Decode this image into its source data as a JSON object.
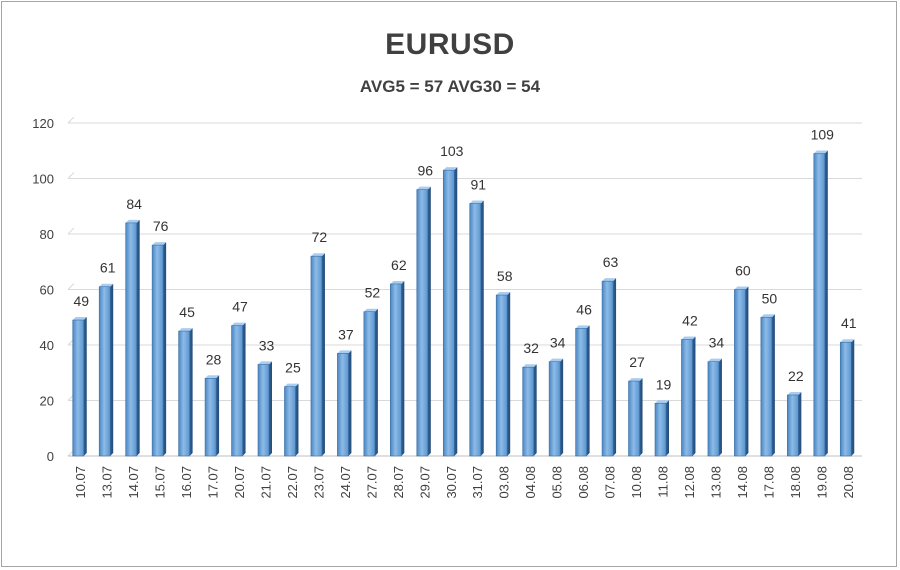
{
  "chart_data": {
    "type": "bar",
    "title": "EURUSD",
    "subtitle": "AVG5 = 57 AVG30 = 54",
    "categories": [
      "10.07",
      "13.07",
      "14.07",
      "15.07",
      "16.07",
      "17.07",
      "20.07",
      "21.07",
      "22.07",
      "23.07",
      "24.07",
      "27.07",
      "28.07",
      "29.07",
      "30.07",
      "31.07",
      "03.08",
      "04.08",
      "05.08",
      "06.08",
      "07.08",
      "10.08",
      "11.08",
      "12.08",
      "13.08",
      "14.08",
      "17.08",
      "18.08",
      "19.08",
      "20.08"
    ],
    "values": [
      49,
      61,
      84,
      76,
      45,
      28,
      47,
      33,
      25,
      72,
      37,
      52,
      62,
      96,
      103,
      91,
      58,
      32,
      34,
      46,
      63,
      27,
      19,
      42,
      34,
      60,
      50,
      22,
      109,
      41
    ],
    "ylim": [
      0,
      120
    ],
    "yticks": [
      0,
      20,
      40,
      60,
      80,
      100,
      120
    ],
    "grid": true,
    "legend": "none",
    "bar_color": "#5b9bd5"
  }
}
